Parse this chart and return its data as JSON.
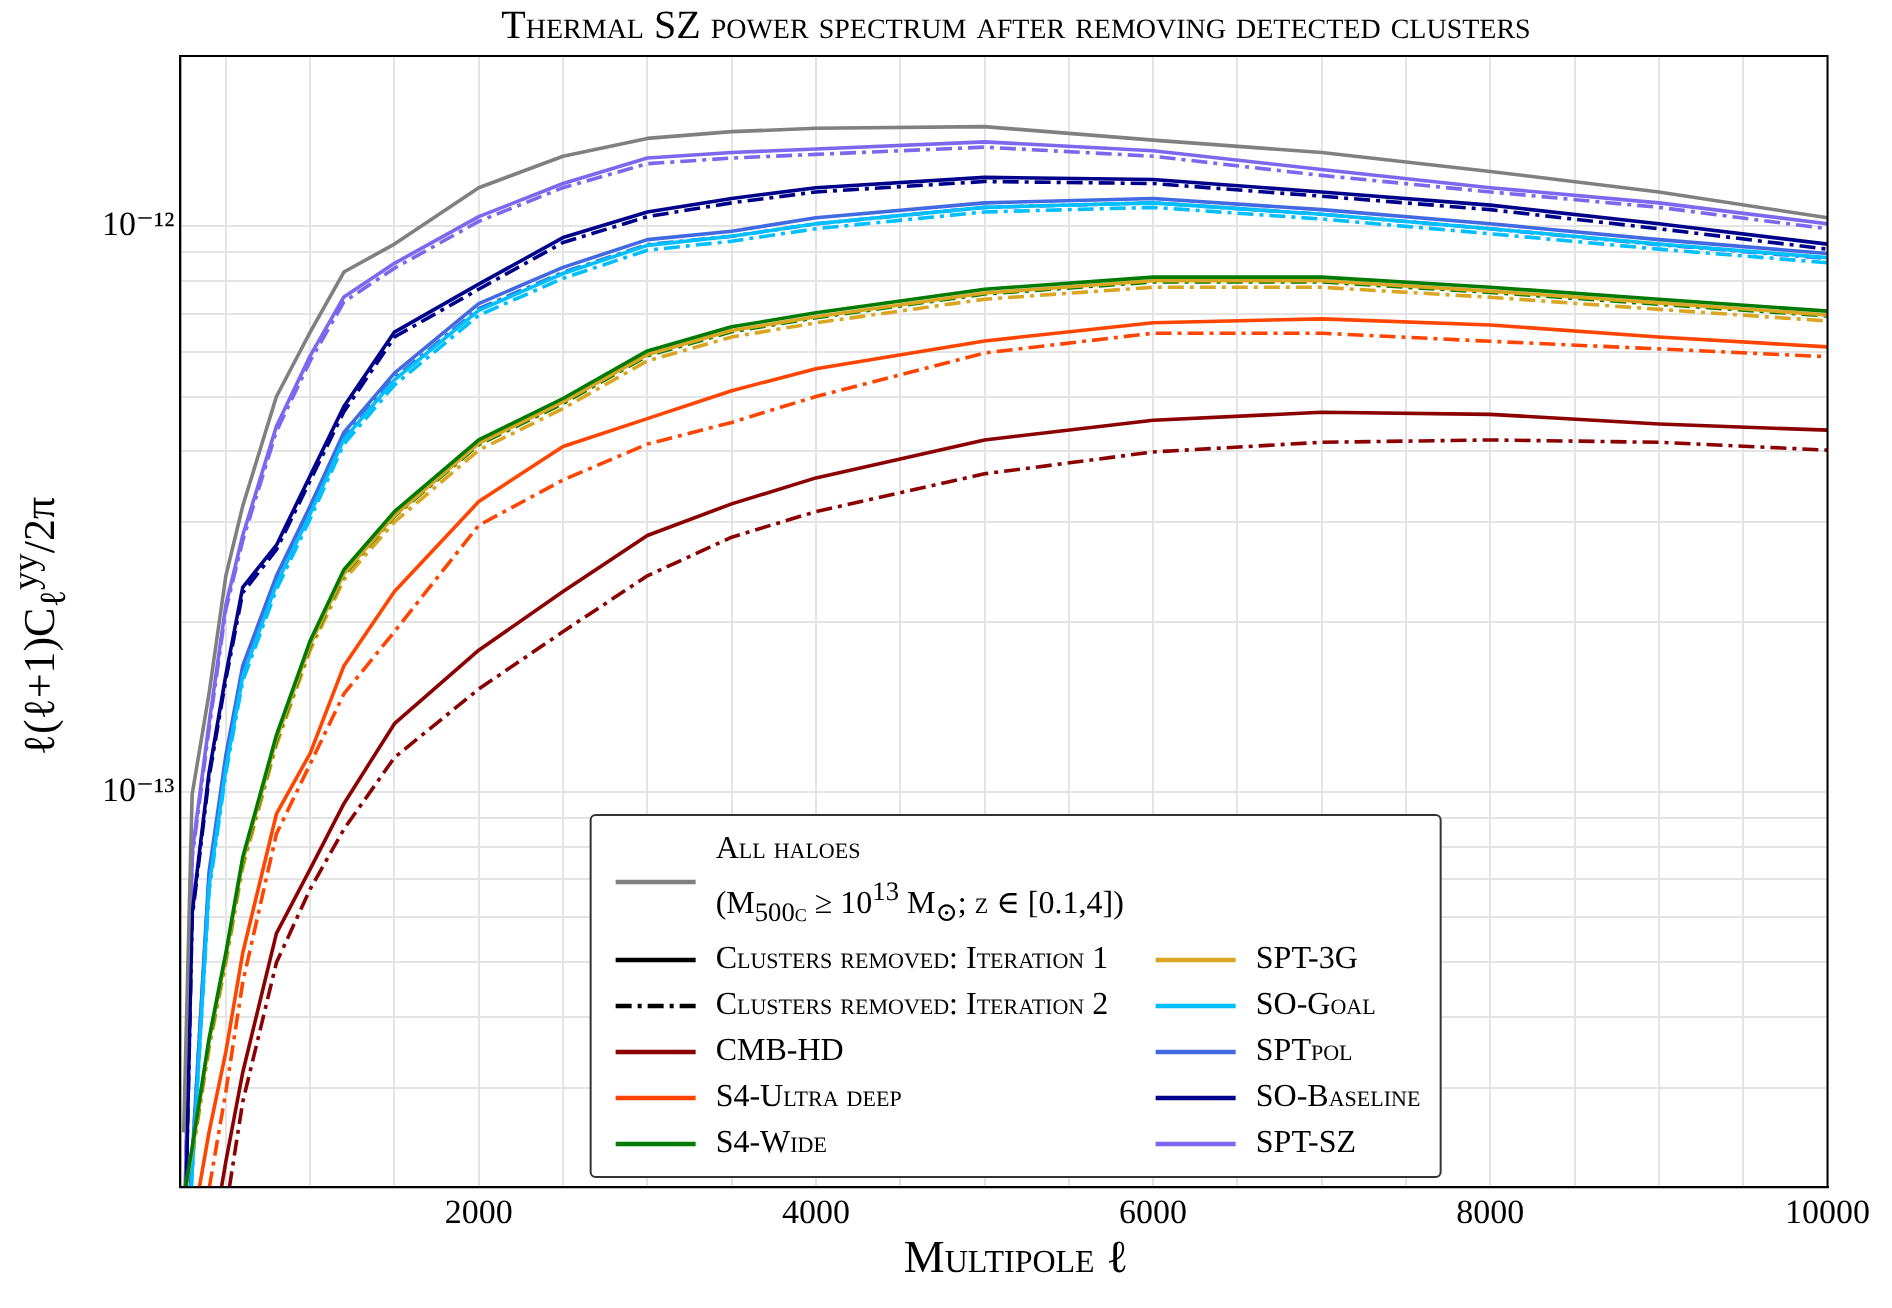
{
  "chart_data": {
    "type": "line",
    "title": "Thermal SZ power spectrum after removing detected clusters",
    "xlabel": "Multipole ℓ",
    "ylabel": "ℓ(ℓ+1)C$_{ℓ}$$^{yy}$/2π",
    "log": "y",
    "grid": true,
    "legend": "bottom",
    "xlim": [
      230,
      10000
    ],
    "xticks": [
      {
        "value": 500,
        "label": null
      },
      {
        "value": 1000,
        "label": null
      },
      {
        "value": 1500,
        "label": null
      },
      2000,
      {
        "value": 2500,
        "label": null
      },
      {
        "value": 3000,
        "label": null
      },
      {
        "value": 3500,
        "label": null
      },
      4000,
      {
        "value": 4500,
        "label": null
      },
      {
        "value": 5000,
        "label": null
      },
      {
        "value": 5500,
        "label": null
      },
      6000,
      {
        "value": 6500,
        "label": null
      },
      {
        "value": 7000,
        "label": null
      },
      {
        "value": 7500,
        "label": null
      },
      8000,
      {
        "value": 8500,
        "label": null
      },
      {
        "value": 9000,
        "label": null
      },
      {
        "value": 9500,
        "label": null
      },
      10000
    ],
    "ylim": [
      2e-14,
      2e-12
    ],
    "yticks": [
      {
        "value": 2e-14,
        "label": null
      },
      {
        "value": 3e-14,
        "label": null
      },
      {
        "value": 4e-14,
        "label": null
      },
      {
        "value": 5e-14,
        "label": null
      },
      {
        "value": 6e-14,
        "label": null
      },
      {
        "value": 7e-14,
        "label": null
      },
      {
        "value": 8e-14,
        "label": null
      },
      {
        "value": 9e-14,
        "label": null
      },
      {
        "value": 1e-13,
        "label": "10⁻¹³"
      },
      {
        "value": 2e-13,
        "label": null
      },
      {
        "value": 3e-13,
        "label": null
      },
      {
        "value": 4e-13,
        "label": null
      },
      {
        "value": 5e-13,
        "label": null
      },
      {
        "value": 6e-13,
        "label": null
      },
      {
        "value": 7e-13,
        "label": null
      },
      {
        "value": 8e-13,
        "label": null
      },
      {
        "value": 9e-13,
        "label": null
      },
      {
        "value": 1e-12,
        "label": "10⁻¹²"
      },
      {
        "value": 2e-12,
        "label": null
      }
    ],
    "series": [
      {
        "name": "All haloes\n(M$_{500c}$ ≥ 10$^{13}$ M$_{⊙}$; z ∈ [0.1,4])",
        "color": "#808080",
        "line_style": "solid",
        "x": [
          250,
          300,
          400,
          500,
          600,
          800,
          1000,
          1200,
          1500,
          2000,
          2500,
          3000,
          3500,
          4000,
          5000,
          6000,
          7000,
          8000,
          9000,
          10000
        ],
        "values": [
          2.5e-14,
          9.9e-14,
          1.49e-13,
          2.41e-13,
          3.2e-13,
          5e-13,
          6.5e-13,
          8.3e-13,
          9.3e-13,
          1.17e-12,
          1.33e-12,
          1.43e-12,
          1.47e-12,
          1.49e-12,
          1.5e-12,
          1.42e-12,
          1.35e-12,
          1.25e-12,
          1.15e-12,
          1.035e-12
        ]
      },
      {
        "name": "Clusters removed: Iteration 1",
        "color": "#000000",
        "line_style": "solid"
      },
      {
        "name": "Clusters removed: Iteration 2",
        "color": "#000000",
        "line_style": "dashdot"
      },
      {
        "name": "CMB-HD",
        "color": "#8b0000",
        "line_style": "solid",
        "x": [
          474,
          500,
          600,
          800,
          1000,
          1200,
          1500,
          2000,
          2500,
          3000,
          3500,
          4000,
          5000,
          6000,
          7000,
          8000,
          9000,
          10000
        ],
        "values": [
          2e-14,
          2.22e-14,
          3.19e-14,
          5.62e-14,
          7.3e-14,
          9.53e-14,
          1.32e-13,
          1.78e-13,
          2.26e-13,
          2.84e-13,
          3.23e-13,
          3.59e-13,
          4.19e-13,
          4.54e-13,
          4.69e-13,
          4.65e-13,
          4.47e-13,
          4.36e-13
        ]
      },
      {
        "name": "S4-Ultra deep",
        "color": "#ff4500",
        "line_style": "solid",
        "x": [
          343,
          400,
          500,
          600,
          800,
          1000,
          1200,
          1500,
          2000,
          2500,
          3000,
          3500,
          4000,
          5000,
          6000,
          7000,
          8000,
          9000,
          10000
        ],
        "values": [
          2e-14,
          2.5e-14,
          3.47e-14,
          5.19e-14,
          9.14e-14,
          1.17e-13,
          1.67e-13,
          2.26e-13,
          3.26e-13,
          4.08e-13,
          4.57e-13,
          5.12e-13,
          5.6e-13,
          6.27e-13,
          6.75e-13,
          6.86e-13,
          6.69e-13,
          6.37e-13,
          6.12e-13
        ]
      },
      {
        "name": "S4-Wide",
        "color": "#007a00",
        "line_style": "solid",
        "x": [
          260,
          300,
          400,
          500,
          600,
          800,
          1000,
          1200,
          1500,
          2000,
          2500,
          3000,
          3500,
          4000,
          5000,
          6000,
          7000,
          8000,
          9000,
          10000
        ],
        "values": [
          2e-14,
          2.35e-14,
          3.66e-14,
          5.19e-14,
          7.66e-14,
          1.26e-13,
          1.85e-13,
          2.47e-13,
          3.13e-13,
          4.19e-13,
          4.96e-13,
          6.02e-13,
          6.64e-13,
          7.03e-13,
          7.74e-13,
          8.13e-13,
          8.13e-13,
          7.8e-13,
          7.43e-13,
          7.08e-13
        ]
      },
      {
        "name": "SPT-3G",
        "color": "#daa520",
        "line_style": "solid",
        "x": [
          260,
          300,
          400,
          500,
          600,
          800,
          1000,
          1200,
          1500,
          2000,
          2500,
          3000,
          3500,
          4000,
          5000,
          6000,
          7000,
          8000,
          9000,
          10000
        ],
        "values": [
          2e-14,
          2.31e-14,
          3.61e-14,
          5.11e-14,
          7.55e-14,
          1.24e-13,
          1.82e-13,
          2.43e-13,
          3.08e-13,
          4.13e-13,
          4.89e-13,
          5.93e-13,
          6.54e-13,
          6.92e-13,
          7.62e-13,
          8.01e-13,
          8.01e-13,
          7.68e-13,
          7.32e-13,
          6.97e-13
        ]
      },
      {
        "name": "SO-Goal",
        "color": "#00bfff",
        "line_style": "solid",
        "x": [
          295,
          400,
          500,
          600,
          800,
          1000,
          1200,
          1500,
          2000,
          2500,
          3000,
          3500,
          4000,
          5000,
          6000,
          7000,
          8000,
          9000,
          10000
        ],
        "values": [
          2e-14,
          6.8e-14,
          1.1e-13,
          1.6e-13,
          2.33e-13,
          3.1e-13,
          4.2e-13,
          5.35e-13,
          7.1e-13,
          8.25e-13,
          9.25e-13,
          9.6e-13,
          1.01e-12,
          1.08e-12,
          1.1e-12,
          1.05e-12,
          9.9e-13,
          9.3e-13,
          8.8e-13
        ]
      },
      {
        "name": "SPTpol",
        "color": "#4169e1",
        "line_style": "solid",
        "x": [
          290,
          400,
          500,
          600,
          800,
          1000,
          1200,
          1500,
          2000,
          2500,
          3000,
          3500,
          4000,
          5000,
          6000,
          7000,
          8000,
          9000,
          10000
        ],
        "values": [
          2e-14,
          7.2e-14,
          1.16e-13,
          1.67e-13,
          2.41e-13,
          3.2e-13,
          4.32e-13,
          5.5e-13,
          7.3e-13,
          8.46e-13,
          9.47e-13,
          9.8e-13,
          1.035e-12,
          1.1e-12,
          1.12e-12,
          1.07e-12,
          1.01e-12,
          9.47e-13,
          8.95e-13
        ]
      },
      {
        "name": "SO-Baseline",
        "color": "#00008b",
        "line_style": "solid",
        "x": [
          265,
          300,
          400,
          500,
          600,
          800,
          1000,
          1200,
          1500,
          2000,
          2500,
          3000,
          3500,
          4000,
          5000,
          6000,
          7000,
          8000,
          9000,
          10000
        ],
        "values": [
          2e-14,
          6.1e-14,
          1.08e-13,
          1.61e-13,
          2.3e-13,
          2.73e-13,
          3.62e-13,
          4.8e-13,
          6.5e-13,
          7.9e-13,
          9.55e-13,
          1.06e-12,
          1.12e-12,
          1.17e-12,
          1.22e-12,
          1.21e-12,
          1.15e-12,
          1.09e-12,
          1.01e-12,
          9.3e-13
        ]
      },
      {
        "name": "SPT-SZ",
        "color": "#7b68ee",
        "line_style": "solid",
        "x": [
          260,
          300,
          400,
          500,
          600,
          800,
          1000,
          1200,
          1500,
          2000,
          2500,
          3000,
          3500,
          4000,
          5000,
          6000,
          7000,
          8000,
          9000,
          10000
        ],
        "values": [
          2e-14,
          7.8e-14,
          1.32e-13,
          2.14e-13,
          2.84e-13,
          4.43e-13,
          5.9e-13,
          7.5e-13,
          8.6e-13,
          1.04e-12,
          1.19e-12,
          1.32e-12,
          1.35e-12,
          1.37e-12,
          1.41e-12,
          1.36e-12,
          1.26e-12,
          1.17e-12,
          1.1e-12,
          1.01e-12
        ]
      },
      {
        "color": "#8b0000",
        "line_style": "dashdot",
        "x": [
          521,
          600,
          800,
          1000,
          1200,
          1500,
          2000,
          2500,
          3000,
          3500,
          4000,
          5000,
          6000,
          7000,
          8000,
          9000,
          10000
        ],
        "values": [
          2e-14,
          2.83e-14,
          4.99e-14,
          6.73e-14,
          8.59e-14,
          1.15e-13,
          1.52e-13,
          1.92e-13,
          2.41e-13,
          2.82e-13,
          3.13e-13,
          3.65e-13,
          3.99e-13,
          4.15e-13,
          4.19e-13,
          4.15e-13,
          4.02e-13
        ]
      },
      {
        "color": "#ff4500",
        "line_style": "dashdot",
        "x": [
          402,
          500,
          600,
          800,
          1000,
          1200,
          1500,
          2000,
          2500,
          3000,
          3500,
          4000,
          5000,
          6000,
          7000,
          8000,
          9000,
          10000
        ],
        "values": [
          2e-14,
          2.95e-14,
          4.6e-14,
          8.43e-14,
          1.12e-13,
          1.49e-13,
          1.92e-13,
          2.96e-13,
          3.56e-13,
          4.12e-13,
          4.5e-13,
          5e-13,
          5.97e-13,
          6.47e-13,
          6.47e-13,
          6.26e-13,
          6.07e-13,
          5.88e-13
        ]
      },
      {
        "color": "#007a00",
        "line_style": "dashdot",
        "x": [
          260,
          300,
          400,
          500,
          600,
          800,
          1000,
          1200,
          1500,
          2000,
          2500,
          3000,
          3500,
          4000,
          5000,
          6000,
          7000,
          8000,
          9000,
          10000
        ],
        "values": [
          2e-14,
          2.3e-14,
          3.59e-14,
          5.09e-14,
          7.51e-14,
          1.23e-13,
          1.81e-13,
          2.42e-13,
          3.07e-13,
          4.11e-13,
          4.86e-13,
          5.9e-13,
          6.51e-13,
          6.89e-13,
          7.59e-13,
          7.97e-13,
          7.97e-13,
          7.64e-13,
          7.28e-13,
          6.94e-13
        ]
      },
      {
        "color": "#daa520",
        "line_style": "dashdot",
        "x": [
          260,
          300,
          400,
          500,
          600,
          800,
          1000,
          1200,
          1500,
          2000,
          2500,
          3000,
          3500,
          4000,
          5000,
          6000,
          7000,
          8000,
          9000,
          10000
        ],
        "values": [
          2e-14,
          2.26e-14,
          3.51e-14,
          4.98e-14,
          7.35e-14,
          1.21e-13,
          1.78e-13,
          2.37e-13,
          3e-13,
          4.02e-13,
          4.76e-13,
          5.78e-13,
          6.37e-13,
          6.75e-13,
          7.43e-13,
          7.8e-13,
          7.8e-13,
          7.49e-13,
          7.13e-13,
          6.8e-13
        ]
      },
      {
        "color": "#00bfff",
        "line_style": "dashdot",
        "x": [
          295,
          400,
          500,
          600,
          800,
          1000,
          1200,
          1500,
          2000,
          2500,
          3000,
          3500,
          4000,
          5000,
          6000,
          7000,
          8000,
          9000,
          10000
        ],
        "values": [
          2e-14,
          6.66e-14,
          1.08e-13,
          1.57e-13,
          2.28e-13,
          3.04e-13,
          4.12e-13,
          5.24e-13,
          6.96e-13,
          8.09e-13,
          9.07e-13,
          9.41e-13,
          9.9e-13,
          1.06e-12,
          1.08e-12,
          1.03e-12,
          9.7e-13,
          9.11e-13,
          8.62e-13
        ]
      },
      {
        "color": "#4169e1",
        "line_style": "dashdot",
        "x": [
          290,
          400,
          500,
          600,
          800,
          1000,
          1200,
          1500,
          2000,
          2500,
          3000,
          3500,
          4000,
          5000,
          6000,
          7000,
          8000,
          9000,
          10000
        ],
        "values": [
          2e-14,
          7.06e-14,
          1.14e-13,
          1.64e-13,
          2.36e-13,
          3.14e-13,
          4.23e-13,
          5.39e-13,
          7.15e-13,
          8.29e-13,
          9.28e-13,
          9.6e-13,
          1.01e-12,
          1.08e-12,
          1.1e-12,
          1.05e-12,
          9.9e-13,
          9.28e-13,
          8.77e-13
        ]
      },
      {
        "color": "#00008b",
        "line_style": "dashdot",
        "x": [
          265,
          300,
          400,
          500,
          600,
          800,
          1000,
          1200,
          1500,
          2000,
          2500,
          3000,
          3500,
          4000,
          5000,
          6000,
          7000,
          8000,
          9000,
          10000
        ],
        "values": [
          2e-14,
          5.98e-14,
          1.06e-13,
          1.58e-13,
          2.25e-13,
          2.68e-13,
          3.55e-13,
          4.7e-13,
          6.37e-13,
          7.74e-13,
          9.36e-13,
          1.04e-12,
          1.1e-12,
          1.15e-12,
          1.2e-12,
          1.19e-12,
          1.13e-12,
          1.07e-12,
          9.9e-13,
          9.11e-13
        ]
      },
      {
        "color": "#7b68ee",
        "line_style": "dashdot",
        "x": [
          260,
          300,
          400,
          500,
          600,
          800,
          1000,
          1200,
          1500,
          2000,
          2500,
          3000,
          3500,
          4000,
          5000,
          6000,
          7000,
          8000,
          9000,
          10000
        ],
        "values": [
          2e-14,
          7.64e-14,
          1.29e-13,
          2.1e-13,
          2.78e-13,
          4.34e-13,
          5.78e-13,
          7.35e-13,
          8.43e-13,
          1.02e-12,
          1.17e-12,
          1.29e-12,
          1.32e-12,
          1.34e-12,
          1.38e-12,
          1.33e-12,
          1.23e-12,
          1.15e-12,
          1.08e-12,
          9.9e-13
        ]
      }
    ]
  }
}
